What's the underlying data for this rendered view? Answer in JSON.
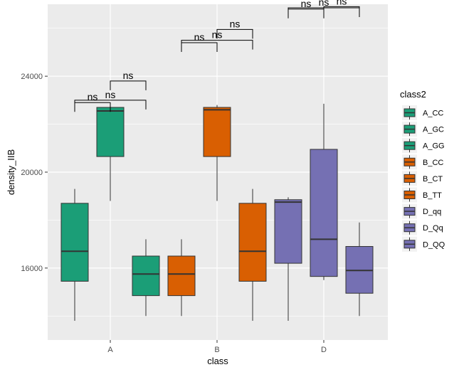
{
  "chart_data": {
    "type": "box",
    "xlabel": "class",
    "ylabel": "density_IIB",
    "categories": [
      "A",
      "B",
      "D"
    ],
    "ylim": [
      13000,
      27000
    ],
    "yticks": [
      16000,
      20000,
      24000
    ],
    "grid": true,
    "legend": {
      "title": "class2",
      "placement": "right",
      "entries": [
        {
          "label": "A_CC",
          "color": "#1b9e77"
        },
        {
          "label": "A_GC",
          "color": "#1b9e77"
        },
        {
          "label": "A_GG",
          "color": "#1b9e77"
        },
        {
          "label": "B_CC",
          "color": "#d95f02"
        },
        {
          "label": "B_CT",
          "color": "#d95f02"
        },
        {
          "label": "B_TT",
          "color": "#d95f02"
        },
        {
          "label": "D_qq",
          "color": "#7570b3"
        },
        {
          "label": "D_Qq",
          "color": "#7570b3"
        },
        {
          "label": "D_QQ",
          "color": "#7570b3"
        }
      ]
    },
    "boxes": [
      {
        "category": "A",
        "group": "A_CC",
        "offset": -1,
        "color": "#1b9e77",
        "min": 13800,
        "q1": 15450,
        "median": 16700,
        "q3": 18700,
        "max": 19300
      },
      {
        "category": "A",
        "group": "A_GC",
        "offset": 0,
        "color": "#1b9e77",
        "min": 18800,
        "q1": 20650,
        "median": 22550,
        "q3": 22700,
        "max": 22750
      },
      {
        "category": "A",
        "group": "A_GG",
        "offset": 1,
        "color": "#1b9e77",
        "min": 14000,
        "q1": 14850,
        "median": 15750,
        "q3": 16500,
        "max": 17200
      },
      {
        "category": "B",
        "group": "B_CC",
        "offset": -1,
        "color": "#d95f02",
        "min": 14000,
        "q1": 14850,
        "median": 15750,
        "q3": 16500,
        "max": 17200
      },
      {
        "category": "B",
        "group": "B_CT",
        "offset": 0,
        "color": "#d95f02",
        "min": 18800,
        "q1": 20650,
        "median": 22600,
        "q3": 22700,
        "max": 22800
      },
      {
        "category": "B",
        "group": "B_TT",
        "offset": 1,
        "color": "#d95f02",
        "min": 13800,
        "q1": 15450,
        "median": 16700,
        "q3": 18700,
        "max": 19300
      },
      {
        "category": "D",
        "group": "D_qq",
        "offset": -1,
        "color": "#7570b3",
        "min": 13800,
        "q1": 16200,
        "median": 18750,
        "q3": 18850,
        "max": 18950
      },
      {
        "category": "D",
        "group": "D_Qq",
        "offset": 0,
        "color": "#7570b3",
        "min": 15500,
        "q1": 15650,
        "median": 17200,
        "q3": 20950,
        "max": 22850
      },
      {
        "category": "D",
        "group": "D_QQ",
        "offset": 1,
        "color": "#7570b3",
        "min": 14000,
        "q1": 14950,
        "median": 15900,
        "q3": 16900,
        "max": 17900
      }
    ],
    "annotations": [
      {
        "category": "A",
        "from": -1,
        "to": 0,
        "y": 22900,
        "label": "ns"
      },
      {
        "category": "A",
        "from": -1,
        "to": 1,
        "y": 23000,
        "label": "ns"
      },
      {
        "category": "A",
        "from": 0,
        "to": 1,
        "y": 23800,
        "label": "ns"
      },
      {
        "category": "B",
        "from": -1,
        "to": 0,
        "y": 25400,
        "label": "ns"
      },
      {
        "category": "B",
        "from": -1,
        "to": 1,
        "y": 25500,
        "label": "ns"
      },
      {
        "category": "B",
        "from": 0,
        "to": 1,
        "y": 25950,
        "label": "ns"
      },
      {
        "category": "D",
        "from": -1,
        "to": 0,
        "y": 26800,
        "label": "ns"
      },
      {
        "category": "D",
        "from": -1,
        "to": 1,
        "y": 26850,
        "label": "ns"
      },
      {
        "category": "D",
        "from": 0,
        "to": 1,
        "y": 26900,
        "label": "ns"
      }
    ]
  }
}
